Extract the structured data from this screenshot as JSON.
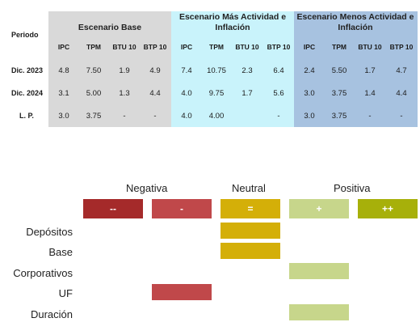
{
  "table": {
    "periodo_header": "Periodo",
    "scenarios": [
      {
        "title": "Escenario Base",
        "headers": [
          "IPC",
          "TPM",
          "BTU 10",
          "BTP 10"
        ]
      },
      {
        "title": "Escenario Más Actividad e Inflación",
        "headers": [
          "IPC",
          "TPM",
          "BTU 10",
          "BTP 10"
        ]
      },
      {
        "title": "Escenario Menos Actividad e Inflación",
        "headers": [
          "IPC",
          "TPM",
          "BTU 10",
          "BTP 10"
        ]
      }
    ],
    "rows": [
      {
        "label": "Dic. 2023",
        "values": [
          "4.8",
          "7.50",
          "1.9",
          "4.9",
          "7.4",
          "10.75",
          "2.3",
          "6.4",
          "2.4",
          "5.50",
          "1.7",
          "4.7"
        ]
      },
      {
        "label": "Dic. 2024",
        "values": [
          "3.1",
          "5.00",
          "1.3",
          "4.4",
          "4.0",
          "9.75",
          "1.7",
          "5.6",
          "3.0",
          "3.75",
          "1.4",
          "4.4"
        ]
      },
      {
        "label": "L. P.",
        "values": [
          "3.0",
          "3.75",
          "-",
          "-",
          "4.0",
          "4.00",
          "",
          "-",
          "3.0",
          "3.75",
          "-",
          "-"
        ]
      }
    ],
    "colors": {
      "base": "#d9d9d9",
      "mas": "#c9f3fb",
      "menos": "#a7c2e0"
    }
  },
  "position": {
    "categories": [
      "Negativa",
      "Neutral",
      "Positiva"
    ],
    "scale": [
      {
        "label": "--",
        "color": "#a52a2a"
      },
      {
        "label": "-",
        "color": "#c0484a"
      },
      {
        "label": "=",
        "color": "#d4af08"
      },
      {
        "label": "+",
        "color": "#c7d68b"
      },
      {
        "label": "++",
        "color": "#a7b00a"
      }
    ],
    "rows": [
      {
        "label": "Depósitos",
        "level": "="
      },
      {
        "label": "Base",
        "level": "="
      },
      {
        "label": "Corporativos",
        "level": "+"
      },
      {
        "label": "UF",
        "level": "-"
      },
      {
        "label": "Duración",
        "level": "+"
      }
    ]
  }
}
